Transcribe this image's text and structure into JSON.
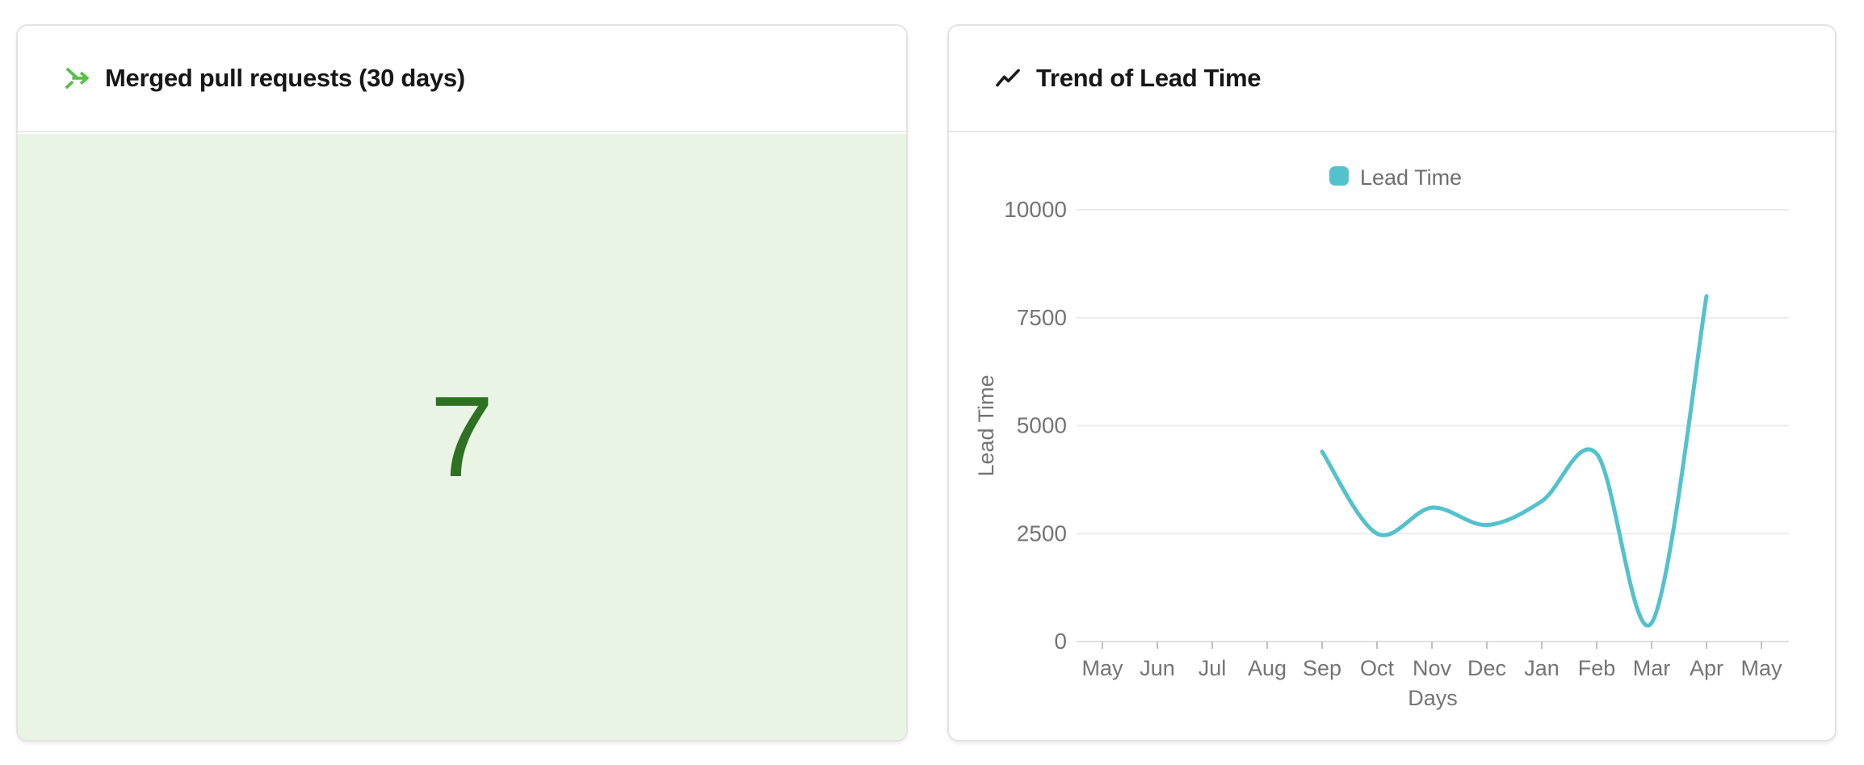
{
  "cards": {
    "merged_prs": {
      "title": "Merged pull requests (30 days)",
      "icon": "git-merge-icon",
      "icon_color": "#5abf4a",
      "value": "7",
      "value_color": "#2f7122",
      "panel_bg": "#e9f4e5"
    },
    "lead_time_trend": {
      "title": "Trend of Lead Time",
      "icon": "trending-up-icon",
      "icon_color": "#1b1b1b",
      "legend": {
        "label": "Lead Time",
        "swatch_color": "#53c2cc"
      }
    }
  },
  "chart_data": [
    {
      "type": "stat",
      "title": "Merged pull requests (30 days)",
      "value": 7
    },
    {
      "type": "line",
      "title": "Trend of Lead Time",
      "categories": [
        "May",
        "Jun",
        "Jul",
        "Aug",
        "Sep",
        "Oct",
        "Nov",
        "Dec",
        "Jan",
        "Feb",
        "Mar",
        "Apr",
        "May"
      ],
      "series": [
        {
          "name": "Lead Time",
          "values": [
            null,
            null,
            null,
            null,
            4400,
            2500,
            3100,
            2700,
            3250,
            4350,
            430,
            8000,
            null
          ],
          "color": "#53c2cc"
        }
      ],
      "xlabel": "Days",
      "ylabel": "Lead Time",
      "ylim": [
        0,
        10000
      ],
      "yticks": [
        0,
        2500,
        5000,
        7500,
        10000
      ],
      "legend_position": "top-center",
      "grid": "horizontal",
      "smooth": true,
      "axis_text_color": "#747474",
      "gridline_color": "#ececec",
      "axis_line_color": "#e0e0e0",
      "tick_color": "#c0c0c0"
    }
  ]
}
